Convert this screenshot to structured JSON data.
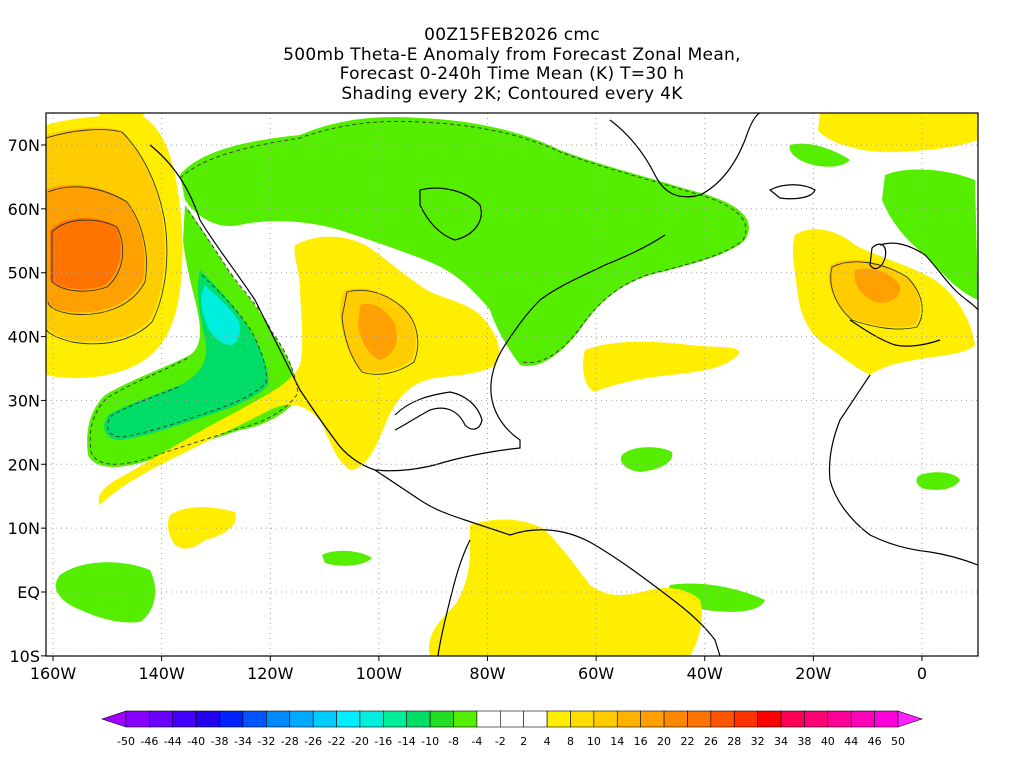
{
  "title": {
    "line1": "00Z15FEB2026 cmc",
    "line2": "500mb Theta-E Anomaly from Forecast Zonal Mean,",
    "line3": "Forecast 0-240h Time Mean (K) T=30 h",
    "line4": "Shading every 2K; Contoured every 4K"
  },
  "map": {
    "lat_labels": [
      "70N",
      "60N",
      "50N",
      "40N",
      "30N",
      "20N",
      "10N",
      "EQ",
      "10S"
    ],
    "lon_labels": [
      "160W",
      "140W",
      "120W",
      "100W",
      "80W",
      "60W",
      "40W",
      "20W",
      "0"
    ],
    "colors": {
      "green": "#55ee00",
      "green_mid": "#00dd66",
      "teal": "#00e8b0",
      "cyan": "#00eedd",
      "yellow": "#ffee00",
      "orange_light": "#ffcc00",
      "orange": "#ffa000",
      "orange_dark": "#ff7300",
      "coast": "#000000",
      "grid": "#a0a0a0"
    }
  },
  "colorbar": {
    "labels": [
      "-50",
      "-46",
      "-44",
      "-40",
      "-38",
      "-34",
      "-32",
      "-28",
      "-26",
      "-22",
      "-20",
      "-16",
      "-14",
      "-10",
      "-8",
      "-4",
      "-2",
      "2",
      "4",
      "8",
      "10",
      "14",
      "16",
      "20",
      "22",
      "26",
      "28",
      "32",
      "34",
      "38",
      "40",
      "44",
      "46",
      "50"
    ],
    "colors": [
      "#a000ff",
      "#8800ff",
      "#6a00ff",
      "#4400ff",
      "#2200ee",
      "#0022ff",
      "#0055ff",
      "#0088ff",
      "#00aaff",
      "#00ccff",
      "#00eeff",
      "#00eedd",
      "#00ee99",
      "#00dd66",
      "#22dd22",
      "#55ee00",
      "#ffffff",
      "#ffffff",
      "#ffffff",
      "#ffee00",
      "#ffdd00",
      "#ffcc00",
      "#ffb300",
      "#ffa000",
      "#ff8800",
      "#ff7300",
      "#ff5500",
      "#ff3300",
      "#ff0000",
      "#ff0055",
      "#ff0077",
      "#ff0099",
      "#ff00bb",
      "#ff00dd",
      "#ff22ff"
    ]
  }
}
